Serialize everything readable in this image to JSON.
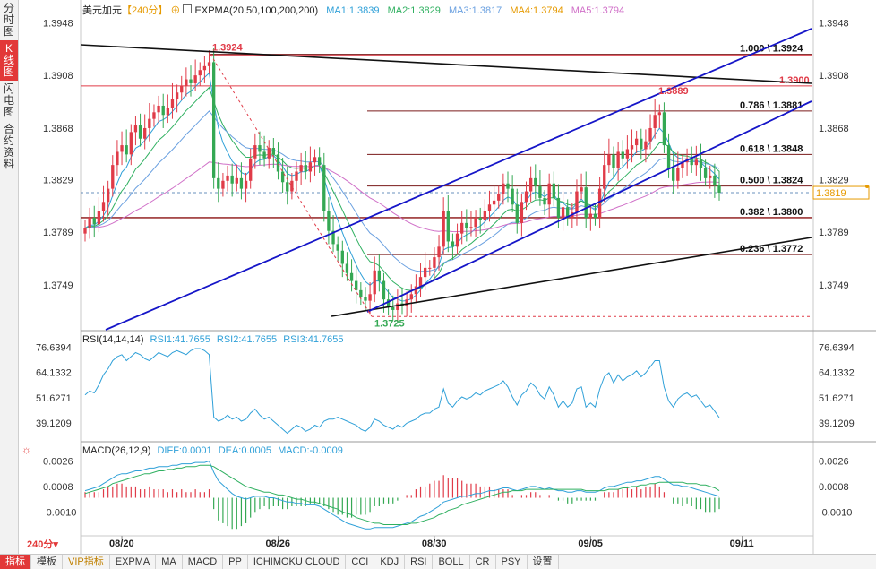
{
  "sidebar": {
    "items": [
      {
        "label": "分时图",
        "active": false
      },
      {
        "label": "K线图",
        "active": true
      },
      {
        "label": "闪电图",
        "active": false
      },
      {
        "label": "合约资料",
        "active": false
      }
    ]
  },
  "main_header": {
    "symbol": "美元加元",
    "period": "【240分】",
    "indicator": "EXPMA(20,50,100,200,200)",
    "ma1": "MA1:1.3839",
    "ma2": "MA2:1.3829",
    "ma3": "MA3:1.3817",
    "ma4": "MA4:1.3794",
    "ma5": "MA5:1.3794"
  },
  "rsi_header": {
    "name": "RSI(14,14,14)",
    "rsi1": "RSI1:41.7655",
    "rsi2": "RSI2:41.7655",
    "rsi3": "RSI3:41.7655"
  },
  "macd_header": {
    "name": "MACD(26,12,9)",
    "diff": "DIFF:0.0001",
    "dea": "DEA:0.0005",
    "macd": "MACD:-0.0009"
  },
  "colors": {
    "up": "#e03b48",
    "down": "#34a853",
    "trend": "#1515c8",
    "ma1": "#2fa0d8",
    "ma2": "#2fb060",
    "ma3": "#6aa0e0",
    "ma5": "#d070c8"
  },
  "price_axis": {
    "left_ticks": [
      "1.3948",
      "1.3908",
      "1.3868",
      "1.3829",
      "1.3789",
      "1.3749"
    ],
    "right_ticks": [
      "1.3948",
      "1.3908",
      "1.3868",
      "1.3829",
      "1.3789",
      "1.3749"
    ],
    "current_price": "1.3819"
  },
  "rsi_axis": {
    "ticks": [
      "76.6394",
      "64.1332",
      "51.6271",
      "39.1209"
    ]
  },
  "macd_axis": {
    "ticks": [
      "0.0026",
      "0.0008",
      "-0.0010"
    ]
  },
  "date_labels": [
    "08/20",
    "08/26",
    "08/30",
    "09/05",
    "09/11"
  ],
  "period_badge": "240分",
  "annotations": {
    "high": "1.3924",
    "low": "1.3725",
    "red_level": "1.3900"
  },
  "fib_levels": [
    {
      "label": "1.000 \\ 1.3924",
      "price": 1.3924
    },
    {
      "label": "0.786 \\ 1.3881",
      "price": 1.3881
    },
    {
      "label": "0.618 \\ 1.3848",
      "price": 1.3848
    },
    {
      "label": "0.500 \\ 1.3824",
      "price": 1.3824
    },
    {
      "label": "0.382 \\ 1.3800",
      "price": 1.38
    },
    {
      "label": "0.236 \\ 1.3772",
      "price": 1.3772
    }
  ],
  "bottom_tabs": [
    "指标",
    "模板",
    "VIP指标",
    "EXPMA",
    "MA",
    "MACD",
    "PP",
    "ICHIMOKU CLOUD",
    "CCI",
    "KDJ",
    "RSI",
    "BOLL",
    "CR",
    "PSY",
    "设置"
  ],
  "chart_data": {
    "type": "candlestick",
    "ylim": [
      1.3715,
      1.3955
    ],
    "candles_close": [
      1.3792,
      1.38,
      1.3795,
      1.3805,
      1.3812,
      1.3822,
      1.384,
      1.385,
      1.3855,
      1.3848,
      1.3865,
      1.387,
      1.386,
      1.3868,
      1.3875,
      1.388,
      1.3885,
      1.3878,
      1.3883,
      1.389,
      1.3895,
      1.39,
      1.3905,
      1.3902,
      1.3908,
      1.3912,
      1.3915,
      1.3918,
      1.383,
      1.3822,
      1.3828,
      1.3832,
      1.3826,
      1.383,
      1.3822,
      1.3828,
      1.3845,
      1.3855,
      1.385,
      1.3845,
      1.3853,
      1.3848,
      1.3835,
      1.3827,
      1.382,
      1.3828,
      1.3835,
      1.384,
      1.3835,
      1.3842,
      1.3846,
      1.384,
      1.3805,
      1.379,
      1.378,
      1.3775,
      1.3765,
      1.3758,
      1.3752,
      1.3745,
      1.374,
      1.3737,
      1.3742,
      1.376,
      1.3752,
      1.3738,
      1.3732,
      1.373,
      1.3735,
      1.3733,
      1.3738,
      1.3742,
      1.3748,
      1.3755,
      1.3762,
      1.3762,
      1.377,
      1.3778,
      1.3805,
      1.3782,
      1.3778,
      1.3788,
      1.3796,
      1.3792,
      1.3793,
      1.38,
      1.3798,
      1.3805,
      1.381,
      1.3813,
      1.3818,
      1.3826,
      1.3822,
      1.381,
      1.3796,
      1.3812,
      1.382,
      1.383,
      1.3824,
      1.3815,
      1.381,
      1.3826,
      1.3815,
      1.38,
      1.3808,
      1.38,
      1.3804,
      1.382,
      1.3823,
      1.38,
      1.3803,
      1.38,
      1.3822,
      1.384,
      1.3848,
      1.3838,
      1.385,
      1.3845,
      1.3852,
      1.3855,
      1.386,
      1.3852,
      1.3858,
      1.3868,
      1.3878,
      1.388,
      1.3855,
      1.3838,
      1.3828,
      1.3838,
      1.3842,
      1.3845,
      1.384,
      1.3844,
      1.3838,
      1.383,
      1.3832,
      1.3825,
      1.3819
    ],
    "fib_levels": [
      1.3924,
      1.3881,
      1.3848,
      1.3824,
      1.38,
      1.3772
    ],
    "rsi": [
      53,
      55,
      54,
      58,
      63,
      66,
      70,
      72,
      73,
      70,
      72,
      74,
      73,
      71,
      70,
      72,
      74,
      73,
      72,
      74,
      75,
      74,
      73,
      75,
      76,
      76,
      75,
      73,
      42,
      40,
      41,
      43,
      41,
      42,
      40,
      41,
      44,
      46,
      43,
      41,
      42,
      40,
      38,
      36,
      34,
      36,
      38,
      37,
      35,
      36,
      38,
      37,
      40,
      41,
      41,
      42,
      41,
      40,
      39,
      38,
      36,
      35,
      37,
      41,
      40,
      38,
      37,
      36,
      38,
      37,
      39,
      40,
      41,
      43,
      44,
      44,
      46,
      47,
      56,
      49,
      47,
      50,
      52,
      51,
      52,
      54,
      53,
      55,
      56,
      57,
      58,
      60,
      57,
      52,
      48,
      53,
      55,
      59,
      57,
      53,
      51,
      57,
      53,
      47,
      50,
      47,
      49,
      56,
      57,
      47,
      49,
      47,
      56,
      62,
      64,
      59,
      63,
      60,
      62,
      63,
      65,
      62,
      64,
      67,
      70,
      70,
      57,
      50,
      47,
      51,
      53,
      54,
      52,
      53,
      50,
      47,
      48,
      45,
      41.7655
    ],
    "macd_diff": [
      0.0005,
      0.0006,
      0.0007,
      0.0008,
      0.001,
      0.0012,
      0.0014,
      0.0016,
      0.0017,
      0.0017,
      0.0018,
      0.0019,
      0.0019,
      0.002,
      0.0021,
      0.0021,
      0.0022,
      0.0022,
      0.0022,
      0.0023,
      0.0023,
      0.0024,
      0.0024,
      0.0024,
      0.0025,
      0.0025,
      0.0025,
      0.0026,
      0.0018,
      0.0012,
      0.0009,
      0.0006,
      0.0003,
      0.0001,
      0.0,
      -0.0001,
      0.0,
      0.0001,
      0.0001,
      0.0001,
      0.0,
      0.0,
      -0.0001,
      -0.0002,
      -0.0003,
      -0.0003,
      -0.0004,
      -0.0004,
      -0.0005,
      -0.0005,
      -0.0005,
      -0.0006,
      -0.0008,
      -0.001,
      -0.0012,
      -0.0014,
      -0.0016,
      -0.0018,
      -0.0019,
      -0.002,
      -0.0021,
      -0.0022,
      -0.0022,
      -0.0021,
      -0.0021,
      -0.0021,
      -0.0021,
      -0.0021,
      -0.002,
      -0.0019,
      -0.0018,
      -0.0017,
      -0.0015,
      -0.0013,
      -0.0012,
      -0.001,
      -0.0008,
      -0.0006,
      -0.0003,
      -0.0002,
      -0.0001,
      0.0,
      0.0001,
      0.0001,
      0.0002,
      0.0003,
      0.0003,
      0.0004,
      0.0005,
      0.0005,
      0.0006,
      0.0007,
      0.0007,
      0.0006,
      0.0005,
      0.0006,
      0.0007,
      0.0008,
      0.0008,
      0.0007,
      0.0006,
      0.0007,
      0.0006,
      0.0005,
      0.0005,
      0.0004,
      0.0004,
      0.0005,
      0.0005,
      0.0004,
      0.0004,
      0.0004,
      0.0005,
      0.0007,
      0.0008,
      0.0008,
      0.0009,
      0.001,
      0.0011,
      0.0011,
      0.0012,
      0.0012,
      0.0013,
      0.0014,
      0.0015,
      0.0015,
      0.0013,
      0.0011,
      0.0009,
      0.0009,
      0.0008,
      0.0008,
      0.0007,
      0.0006,
      0.0005,
      0.0004,
      0.0003,
      0.0002,
      0.0001
    ],
    "macd_dea": [
      0.0003,
      0.0004,
      0.0005,
      0.0006,
      0.0007,
      0.0008,
      0.001,
      0.0011,
      0.0012,
      0.0013,
      0.0014,
      0.0015,
      0.0016,
      0.0017,
      0.0017,
      0.0018,
      0.0019,
      0.0019,
      0.002,
      0.002,
      0.0021,
      0.0021,
      0.0022,
      0.0022,
      0.0022,
      0.0023,
      0.0023,
      0.0023,
      0.0022,
      0.002,
      0.0018,
      0.0016,
      0.0014,
      0.0012,
      0.001,
      0.0008,
      0.0007,
      0.0006,
      0.0005,
      0.0004,
      0.0004,
      0.0003,
      0.0002,
      0.0002,
      0.0001,
      0.0,
      -0.0001,
      -0.0001,
      -0.0002,
      -0.0003,
      -0.0003,
      -0.0004,
      -0.0005,
      -0.0006,
      -0.0007,
      -0.0008,
      -0.001,
      -0.0011,
      -0.0012,
      -0.0014,
      -0.0015,
      -0.0016,
      -0.0017,
      -0.0018,
      -0.0018,
      -0.0019,
      -0.0019,
      -0.0019,
      -0.0019,
      -0.0019,
      -0.0019,
      -0.0018,
      -0.0018,
      -0.0017,
      -0.0016,
      -0.0015,
      -0.0014,
      -0.0012,
      -0.0011,
      -0.0009,
      -0.0008,
      -0.0007,
      -0.0005,
      -0.0004,
      -0.0003,
      -0.0002,
      -0.0001,
      0.0,
      0.0001,
      0.0002,
      0.0003,
      0.0004,
      0.0004,
      0.0005,
      0.0005,
      0.0005,
      0.0006,
      0.0006,
      0.0006,
      0.0006,
      0.0006,
      0.0006,
      0.0006,
      0.0006,
      0.0006,
      0.0006,
      0.0006,
      0.0006,
      0.0006,
      0.0005,
      0.0005,
      0.0005,
      0.0005,
      0.0005,
      0.0006,
      0.0006,
      0.0006,
      0.0007,
      0.0007,
      0.0008,
      0.0008,
      0.0009,
      0.0009,
      0.001,
      0.001,
      0.0011,
      0.0011,
      0.0011,
      0.0011,
      0.0011,
      0.0011,
      0.001,
      0.001,
      0.001,
      0.0009,
      0.0009,
      0.0008,
      0.0007,
      0.0005
    ]
  }
}
